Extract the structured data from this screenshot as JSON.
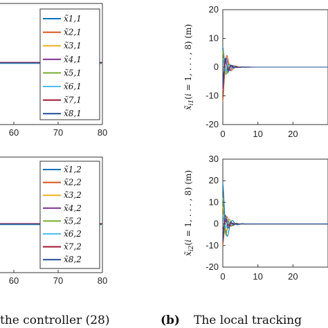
{
  "colors": [
    "#0072BD",
    "#D95319",
    "#EDB120",
    "#7E2F8E",
    "#77AC30",
    "#4DBEEE",
    "#A2142F",
    "#1f4e96"
  ],
  "chart_data": [
    {
      "type": "line",
      "x_ticks": [
        "60",
        "70",
        "80"
      ],
      "y_ticks": [],
      "legend": [
        "x̃1,1",
        "x̃2,1",
        "x̃3,1",
        "x̃4,1",
        "x̃5,1",
        "x̃6,1",
        "x̃7,1",
        "x̃8,1"
      ],
      "legend_placement": "top-right",
      "series_level": 0
    },
    {
      "type": "line",
      "x_ticks": [
        "60",
        "70",
        "80"
      ],
      "y_ticks": [],
      "legend": [
        "x̃1,2",
        "x̃2,2",
        "x̃3,2",
        "x̃4,2",
        "x̃5,2",
        "x̃6,2",
        "x̃7,2",
        "x̃8,2"
      ],
      "legend_placement": "top-right",
      "series_level": 0
    },
    {
      "type": "line",
      "xlabel": "",
      "ylabel": "x̃i1(i = 1, . . . , 8) (m)",
      "x_ticks": [
        "0",
        "10",
        "20"
      ],
      "y_ticks": [
        "20",
        "10",
        "0",
        "-10",
        "-20"
      ],
      "ylim": [
        -20,
        20
      ],
      "initial_values": [
        7,
        -12,
        5,
        -8,
        6,
        3,
        -4,
        -6
      ]
    },
    {
      "type": "line",
      "xlabel": "",
      "ylabel": "x̃i2(i = 1, . . . , 8) (m)",
      "x_ticks": [
        "0",
        "10",
        "20"
      ],
      "y_ticks": [
        "30",
        "20",
        "10",
        "0",
        "-10",
        "-20"
      ],
      "ylim": [
        -20,
        30
      ],
      "initial_values": [
        19,
        -10,
        8,
        -6,
        12,
        4,
        -3,
        -8
      ]
    }
  ],
  "captions": {
    "left": "the controller (28)",
    "right_tag": "(b)",
    "right_text": "The local tracking"
  }
}
